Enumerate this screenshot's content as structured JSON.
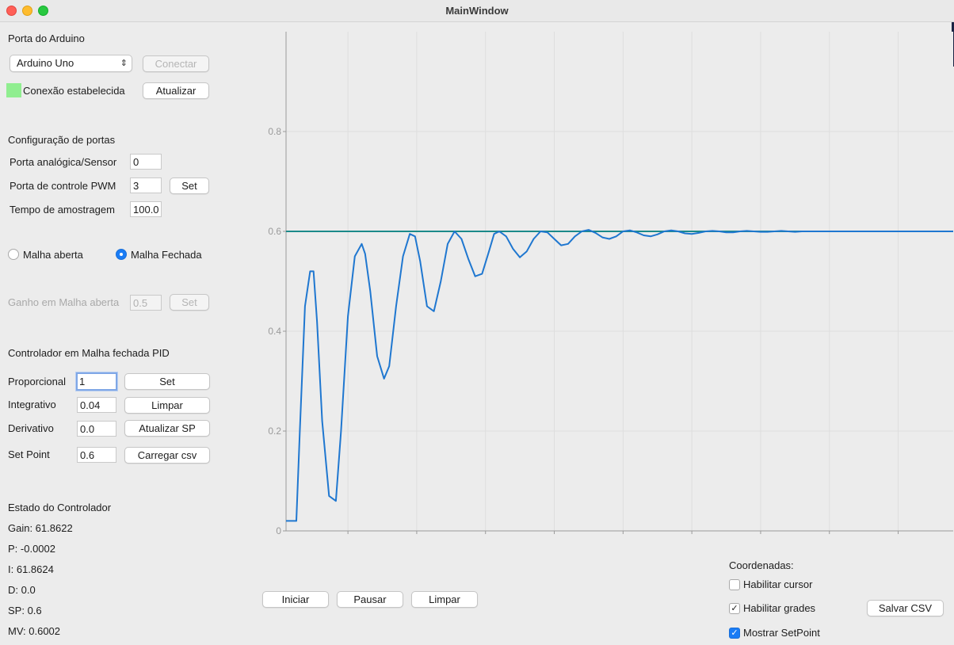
{
  "window": {
    "title": "MainWindow"
  },
  "arduino": {
    "section_title": "Porta do Arduino",
    "port_selected": "Arduino Uno",
    "connect_label": "Conectar",
    "status_text": "Conexão estabelecida",
    "status_color": "#90ee90",
    "refresh_label": "Atualizar"
  },
  "ports": {
    "section_title": "Configuração de portas",
    "analog_label": "Porta analógica/Sensor",
    "analog_value": "0",
    "pwm_label": "Porta de controle PWM",
    "pwm_value": "3",
    "pwm_set_label": "Set",
    "sample_label": "Tempo de amostragem",
    "sample_value": "100.0"
  },
  "loop": {
    "open_label": "Malha aberta",
    "closed_label": "Malha Fechada",
    "selected": "closed",
    "open_gain_label": "Ganho em Malha aberta",
    "open_gain_value": "0.5",
    "open_gain_set_label": "Set"
  },
  "pid": {
    "section_title": "Controlador em Malha fechada PID",
    "kp_label": "Proporcional",
    "kp_value": "1",
    "ki_label": "Integrativo",
    "ki_value": "0.04",
    "kd_label": "Derivativo",
    "kd_value": "0.0",
    "sp_label": "Set Point",
    "sp_value": "0.6",
    "set_label": "Set",
    "clear_label": "Limpar",
    "update_sp_label": "Atualizar SP",
    "load_csv_label": "Carregar csv"
  },
  "state": {
    "section_title": "Estado do Controlador",
    "gain": "Gain: 61.8622",
    "p": "P: -0.0002",
    "i": "I: 61.8624",
    "d": "D: 0.0",
    "sp": "SP: 0.6",
    "mv": "MV: 0.6002"
  },
  "controls": {
    "start_label": "Iniciar",
    "pause_label": "Pausar",
    "clear_label": "Limpar"
  },
  "coords": {
    "title": "Coordenadas:",
    "cursor_label": "Habilitar cursor",
    "cursor_checked": false,
    "grid_label": "Habilitar grades",
    "grid_checked": true,
    "setpoint_label": "Mostrar SetPoint",
    "setpoint_checked": true,
    "save_csv_label": "Salvar CSV"
  },
  "chart_data": {
    "type": "line",
    "title": "",
    "xlabel": "",
    "ylabel": "",
    "xlim": [
      60.2,
      79.6
    ],
    "ylim": [
      0,
      1
    ],
    "x_ticks": [
      "62",
      "64",
      "66",
      "68",
      "70",
      "72",
      "74",
      "76",
      "78"
    ],
    "y_ticks": [
      "0",
      "0.2",
      "0.4",
      "0.6",
      "0.8"
    ],
    "grid": true,
    "colors": {
      "response": "#1f77d0",
      "setpoint": "#1b8a8a",
      "grid": "#dedede"
    },
    "setpoint": 0.6,
    "series": [
      {
        "x": [
          60.2,
          60.5,
          60.6,
          60.75,
          60.9,
          61.0,
          61.1,
          61.25,
          61.45,
          61.65,
          61.8,
          62.0,
          62.2,
          62.4,
          62.5,
          62.65,
          62.85,
          63.05,
          63.2,
          63.4,
          63.6,
          63.8,
          63.95,
          64.1,
          64.3,
          64.5,
          64.7,
          64.9,
          65.1,
          65.3,
          65.5,
          65.7,
          65.9,
          66.1,
          66.25,
          66.4,
          66.6,
          66.8,
          67.0,
          67.2,
          67.4,
          67.6,
          67.8,
          68.0,
          68.2,
          68.4,
          68.6,
          68.8,
          69.0,
          69.2,
          69.4,
          69.6,
          69.8,
          70.0,
          70.2,
          70.4,
          70.6,
          70.8,
          71.0,
          71.2,
          71.4,
          71.6,
          71.8,
          72.0,
          72.2,
          72.4,
          72.6,
          72.8,
          73.0,
          73.2,
          73.4,
          73.6,
          73.8,
          74.0,
          74.2,
          74.4,
          74.6,
          74.8,
          75.0,
          75.2,
          75.4,
          75.6,
          75.8,
          76.0,
          76.2,
          76.4,
          76.6,
          76.8,
          77.0,
          77.2,
          77.4,
          77.6,
          77.8,
          78.0,
          78.2,
          78.4,
          78.6,
          78.8,
          79.0,
          79.2,
          79.4,
          79.6
        ],
        "values": [
          0.02,
          0.02,
          0.2,
          0.45,
          0.52,
          0.52,
          0.42,
          0.22,
          0.07,
          0.06,
          0.2,
          0.43,
          0.55,
          0.575,
          0.555,
          0.48,
          0.35,
          0.305,
          0.33,
          0.45,
          0.55,
          0.595,
          0.59,
          0.54,
          0.45,
          0.44,
          0.5,
          0.575,
          0.6,
          0.585,
          0.545,
          0.51,
          0.515,
          0.56,
          0.595,
          0.6,
          0.59,
          0.565,
          0.548,
          0.56,
          0.585,
          0.6,
          0.598,
          0.585,
          0.572,
          0.575,
          0.59,
          0.6,
          0.603,
          0.597,
          0.588,
          0.585,
          0.59,
          0.6,
          0.602,
          0.598,
          0.592,
          0.59,
          0.594,
          0.6,
          0.602,
          0.6,
          0.596,
          0.595,
          0.597,
          0.6,
          0.601,
          0.6,
          0.598,
          0.598,
          0.6,
          0.601,
          0.6,
          0.599,
          0.599,
          0.6,
          0.601,
          0.6,
          0.599,
          0.6,
          0.6,
          0.6,
          0.6,
          0.6,
          0.6,
          0.6,
          0.6,
          0.6,
          0.6,
          0.6,
          0.6,
          0.6,
          0.6,
          0.6,
          0.6,
          0.6,
          0.6,
          0.6,
          0.6,
          0.6,
          0.6,
          0.6
        ]
      }
    ]
  }
}
